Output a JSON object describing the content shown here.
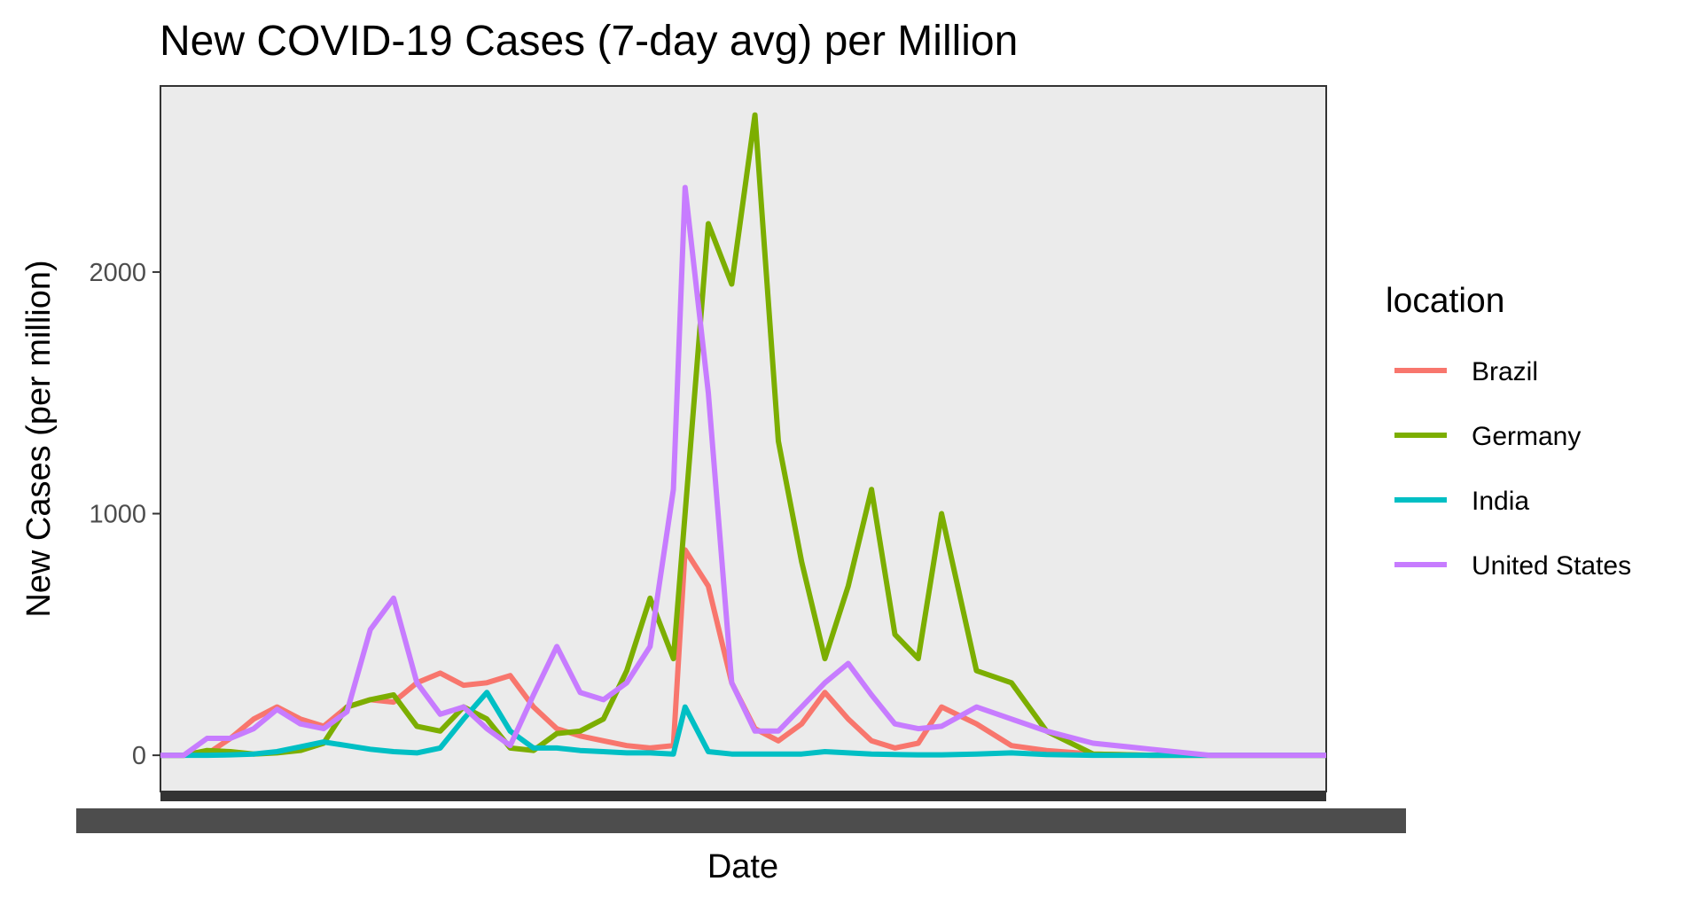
{
  "chart_data": {
    "type": "line",
    "title": "New COVID-19 Cases (7-day avg) per Million",
    "xlabel": "Date",
    "ylabel": "New Cases (per million)",
    "x_tick_note": "x-axis date tick labels are overplotted into an illegible dark band",
    "x": [
      0,
      2,
      4,
      6,
      8,
      10,
      12,
      14,
      16,
      18,
      20,
      22,
      24,
      26,
      28,
      30,
      32,
      34,
      36,
      38,
      40,
      42,
      44,
      45,
      47,
      49,
      51,
      53,
      55,
      57,
      59,
      61,
      63,
      65,
      67,
      70,
      73,
      76,
      80,
      85,
      90,
      95,
      100
    ],
    "ylim": [
      -150,
      2770
    ],
    "y_ticks": [
      0,
      1000,
      2000
    ],
    "legend": {
      "title": "location",
      "position": "right"
    },
    "series": [
      {
        "name": "Brazil",
        "color": "#F8766D",
        "values": [
          0,
          0,
          5,
          70,
          150,
          200,
          150,
          120,
          200,
          230,
          220,
          300,
          340,
          290,
          300,
          330,
          200,
          110,
          80,
          60,
          40,
          30,
          40,
          850,
          700,
          300,
          110,
          60,
          130,
          260,
          150,
          60,
          30,
          50,
          200,
          130,
          40,
          20,
          5,
          0,
          0,
          0,
          0
        ]
      },
      {
        "name": "Germany",
        "color": "#7CAE00",
        "values": [
          0,
          0,
          20,
          15,
          5,
          10,
          20,
          50,
          200,
          230,
          250,
          120,
          100,
          200,
          150,
          30,
          20,
          90,
          100,
          150,
          350,
          650,
          400,
          1000,
          2200,
          1950,
          2650,
          1300,
          800,
          400,
          700,
          1100,
          500,
          400,
          1000,
          350,
          300,
          100,
          5,
          0,
          0,
          0,
          0
        ]
      },
      {
        "name": "India",
        "color": "#00BFC4",
        "values": [
          0,
          0,
          0,
          2,
          5,
          15,
          35,
          55,
          40,
          25,
          15,
          10,
          30,
          150,
          260,
          100,
          30,
          30,
          20,
          15,
          10,
          10,
          5,
          200,
          15,
          5,
          5,
          5,
          5,
          15,
          10,
          5,
          3,
          2,
          2,
          5,
          10,
          3,
          0,
          0,
          0,
          0,
          0
        ]
      },
      {
        "name": "United States",
        "color": "#C77CFF",
        "values": [
          0,
          0,
          70,
          70,
          110,
          190,
          130,
          110,
          180,
          520,
          650,
          300,
          170,
          200,
          110,
          40,
          250,
          450,
          260,
          230,
          300,
          450,
          1100,
          2350,
          1500,
          300,
          100,
          100,
          200,
          300,
          380,
          250,
          130,
          110,
          120,
          200,
          150,
          100,
          50,
          25,
          0,
          0,
          0
        ]
      }
    ]
  }
}
